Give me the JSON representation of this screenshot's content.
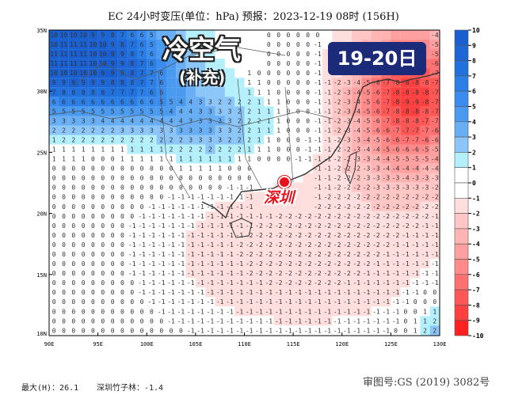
{
  "title": "EC 24小时变压(单位：hPa)    预报：2023-12-19 08时 (156H)",
  "map": {
    "lat_labels": [
      "35N",
      "30N",
      "25N",
      "20N",
      "15N",
      "10N"
    ],
    "lon_labels": [
      "90E",
      "95E",
      "100E",
      "105E",
      "110E",
      "115E",
      "120E",
      "125E",
      "130E"
    ],
    "annotation_main": "冷空气",
    "annotation_sub": "(补充)",
    "date_badge": "19-20日",
    "city_label": "深圳"
  },
  "colorbar": {
    "labels": [
      "10",
      "9",
      "8",
      "7",
      "6",
      "5",
      "4",
      "3",
      "2",
      "1",
      "0",
      "-1",
      "-2",
      "-3",
      "-4",
      "-5",
      "-6",
      "-7",
      "-8",
      "-9",
      "-10"
    ],
    "colors": [
      "#1a5fd0",
      "#1e66d6",
      "#2070dd",
      "#2b7ee6",
      "#3a8cee",
      "#4a9af0",
      "#68aef4",
      "#8cc6f8",
      "#b4f0fc",
      "#ffffff",
      "#ffffff",
      "#ffdede",
      "#ffc6c6",
      "#ffb4b4",
      "#ffa0a0",
      "#ff8a8a",
      "#ff7070",
      "#ff5656",
      "#ff4040",
      "#ff2020"
    ]
  },
  "footer": {
    "max": "最大(H)：26.1",
    "station": "深圳竹子林：-1.4",
    "approval": "审图号:GS (2019) 3082号"
  }
}
